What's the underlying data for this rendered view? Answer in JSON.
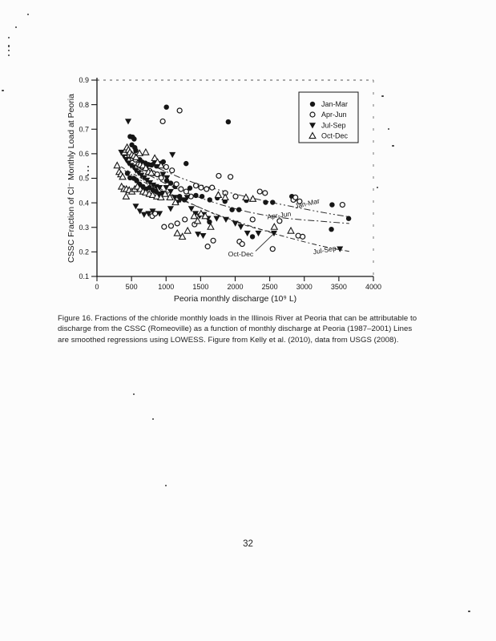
{
  "page": {
    "number": "32"
  },
  "caption": {
    "line1": "Figure 16. Fractions of the chloride monthly loads in the Illinois River at Peoria that can be attributable to",
    "line2": "discharge from the CSSC (Romeoville) as a function of monthly discharge at Peoria (1987–2001) Lines",
    "line3": "are smoothed regressions using LOWESS. Figure from Kelly et al. (2010), data from USGS (2008)."
  },
  "chart_data": {
    "type": "scatter",
    "title": "",
    "xlabel": "Peoria monthly discharge (10⁹ L)",
    "ylabel": "CSSC Fraction of Cl⁻ Monthly Load at Peoria",
    "xlim": [
      0,
      4000
    ],
    "ylim": [
      0.1,
      0.9
    ],
    "xticks": [
      0,
      500,
      1000,
      1500,
      2000,
      2500,
      3000,
      3500,
      4000
    ],
    "yticks": [
      0.1,
      0.2,
      0.3,
      0.4,
      0.5,
      0.6,
      0.7,
      0.8,
      0.9
    ],
    "grid": false,
    "legend": {
      "position": "top-right"
    },
    "ink_color": "#161616",
    "series": [
      {
        "name": "Jan-Mar",
        "marker": "filled-circle",
        "points": [
          [
            480,
            0.67
          ],
          [
            515,
            0.668
          ],
          [
            538,
            0.66
          ],
          [
            505,
            0.636
          ],
          [
            548,
            0.625
          ],
          [
            562,
            0.613
          ],
          [
            620,
            0.576
          ],
          [
            655,
            0.566
          ],
          [
            700,
            0.562
          ],
          [
            745,
            0.556
          ],
          [
            790,
            0.554
          ],
          [
            832,
            0.562
          ],
          [
            862,
            0.55
          ],
          [
            905,
            0.552
          ],
          [
            932,
            0.562
          ],
          [
            960,
            0.567
          ],
          [
            1005,
            0.79
          ],
          [
            1900,
            0.73
          ],
          [
            1290,
            0.56
          ],
          [
            440,
            0.52
          ],
          [
            478,
            0.502
          ],
          [
            532,
            0.5
          ],
          [
            575,
            0.49
          ],
          [
            618,
            0.476
          ],
          [
            665,
            0.466
          ],
          [
            712,
            0.456
          ],
          [
            758,
            0.462
          ],
          [
            808,
            0.452
          ],
          [
            855,
            0.446
          ],
          [
            900,
            0.436
          ],
          [
            948,
            0.44
          ],
          [
            1010,
            0.49
          ],
          [
            1068,
            0.48
          ],
          [
            1130,
            0.466
          ],
          [
            1196,
            0.426
          ],
          [
            1265,
            0.412
          ],
          [
            1345,
            0.46
          ],
          [
            1432,
            0.43
          ],
          [
            1520,
            0.426
          ],
          [
            1632,
            0.412
          ],
          [
            1628,
            0.322
          ],
          [
            1742,
            0.42
          ],
          [
            1852,
            0.406
          ],
          [
            1955,
            0.372
          ],
          [
            2055,
            0.372
          ],
          [
            2162,
            0.41
          ],
          [
            2250,
            0.262
          ],
          [
            2440,
            0.402
          ],
          [
            2542,
            0.402
          ],
          [
            2820,
            0.426
          ],
          [
            2862,
            0.416
          ],
          [
            3392,
            0.292
          ],
          [
            3402,
            0.392
          ],
          [
            3642,
            0.336
          ]
        ]
      },
      {
        "name": "Apr-Jun",
        "marker": "open-circle",
        "points": [
          [
            952,
            0.732
          ],
          [
            1196,
            0.776
          ],
          [
            430,
            0.602
          ],
          [
            470,
            0.592
          ],
          [
            512,
            0.582
          ],
          [
            556,
            0.576
          ],
          [
            602,
            0.556
          ],
          [
            650,
            0.546
          ],
          [
            706,
            0.54
          ],
          [
            762,
            0.53
          ],
          [
            816,
            0.52
          ],
          [
            872,
            0.516
          ],
          [
            930,
            0.502
          ],
          [
            1002,
            0.546
          ],
          [
            1086,
            0.532
          ],
          [
            1150,
            0.476
          ],
          [
            1216,
            0.456
          ],
          [
            1292,
            0.446
          ],
          [
            1360,
            0.426
          ],
          [
            1432,
            0.47
          ],
          [
            1506,
            0.462
          ],
          [
            1586,
            0.456
          ],
          [
            1666,
            0.462
          ],
          [
            1762,
            0.51
          ],
          [
            1932,
            0.506
          ],
          [
            1856,
            0.44
          ],
          [
            2006,
            0.426
          ],
          [
            2356,
            0.446
          ],
          [
            2432,
            0.44
          ],
          [
            2642,
            0.326
          ],
          [
            2842,
            0.412
          ],
          [
            2872,
            0.422
          ],
          [
            2932,
            0.406
          ],
          [
            2912,
            0.266
          ],
          [
            2976,
            0.262
          ],
          [
            3552,
            0.392
          ],
          [
            800,
            0.346
          ],
          [
            842,
            0.356
          ],
          [
            972,
            0.302
          ],
          [
            1072,
            0.306
          ],
          [
            1162,
            0.316
          ],
          [
            1272,
            0.332
          ],
          [
            1412,
            0.312
          ],
          [
            1602,
            0.222
          ],
          [
            1682,
            0.246
          ],
          [
            2062,
            0.242
          ],
          [
            2102,
            0.232
          ],
          [
            2252,
            0.332
          ],
          [
            2542,
            0.212
          ]
        ]
      },
      {
        "name": "Jul-Sep",
        "marker": "filled-triangle-down",
        "points": [
          [
            452,
            0.732
          ],
          [
            352,
            0.606
          ],
          [
            386,
            0.592
          ],
          [
            422,
            0.576
          ],
          [
            456,
            0.562
          ],
          [
            492,
            0.552
          ],
          [
            526,
            0.546
          ],
          [
            562,
            0.532
          ],
          [
            602,
            0.522
          ],
          [
            642,
            0.512
          ],
          [
            682,
            0.502
          ],
          [
            722,
            0.492
          ],
          [
            766,
            0.482
          ],
          [
            812,
            0.472
          ],
          [
            856,
            0.466
          ],
          [
            906,
            0.462
          ],
          [
            956,
            0.516
          ],
          [
            1012,
            0.502
          ],
          [
            1092,
            0.596
          ],
          [
            1002,
            0.462
          ],
          [
            1066,
            0.446
          ],
          [
            1126,
            0.422
          ],
          [
            1206,
            0.412
          ],
          [
            562,
            0.386
          ],
          [
            622,
            0.366
          ],
          [
            682,
            0.352
          ],
          [
            746,
            0.356
          ],
          [
            806,
            0.366
          ],
          [
            906,
            0.356
          ],
          [
            1066,
            0.376
          ],
          [
            1166,
            0.402
          ],
          [
            1306,
            0.422
          ],
          [
            1366,
            0.376
          ],
          [
            1426,
            0.356
          ],
          [
            1486,
            0.346
          ],
          [
            1546,
            0.352
          ],
          [
            1606,
            0.336
          ],
          [
            1732,
            0.336
          ],
          [
            1462,
            0.272
          ],
          [
            1536,
            0.266
          ],
          [
            1866,
            0.332
          ],
          [
            2002,
            0.316
          ],
          [
            2082,
            0.302
          ],
          [
            2176,
            0.276
          ],
          [
            2336,
            0.276
          ],
          [
            2562,
            0.276
          ],
          [
            3516,
            0.212
          ]
        ]
      },
      {
        "name": "Oct-Dec",
        "marker": "open-triangle-up",
        "points": [
          [
            292,
            0.552
          ],
          [
            322,
            0.526
          ],
          [
            346,
            0.516
          ],
          [
            372,
            0.506
          ],
          [
            396,
            0.606
          ],
          [
            416,
            0.616
          ],
          [
            436,
            0.626
          ],
          [
            456,
            0.616
          ],
          [
            476,
            0.606
          ],
          [
            506,
            0.596
          ],
          [
            536,
            0.592
          ],
          [
            566,
            0.586
          ],
          [
            616,
            0.602
          ],
          [
            706,
            0.606
          ],
          [
            836,
            0.582
          ],
          [
            876,
            0.566
          ],
          [
            626,
            0.556
          ],
          [
            666,
            0.552
          ],
          [
            706,
            0.542
          ],
          [
            746,
            0.526
          ],
          [
            786,
            0.522
          ],
          [
            926,
            0.552
          ],
          [
            356,
            0.466
          ],
          [
            392,
            0.456
          ],
          [
            426,
            0.456
          ],
          [
            466,
            0.452
          ],
          [
            506,
            0.446
          ],
          [
            546,
            0.456
          ],
          [
            586,
            0.466
          ],
          [
            626,
            0.456
          ],
          [
            666,
            0.446
          ],
          [
            706,
            0.442
          ],
          [
            756,
            0.436
          ],
          [
            806,
            0.432
          ],
          [
            866,
            0.426
          ],
          [
            926,
            0.422
          ],
          [
            986,
            0.436
          ],
          [
            1056,
            0.422
          ],
          [
            1136,
            0.402
          ],
          [
            422,
            0.426
          ],
          [
            1162,
            0.276
          ],
          [
            1236,
            0.262
          ],
          [
            1312,
            0.286
          ],
          [
            1406,
            0.346
          ],
          [
            1456,
            0.326
          ],
          [
            1506,
            0.356
          ],
          [
            1566,
            0.346
          ],
          [
            1646,
            0.302
          ],
          [
            1756,
            0.432
          ],
          [
            1856,
            0.422
          ],
          [
            2156,
            0.422
          ],
          [
            2256,
            0.416
          ],
          [
            2566,
            0.302
          ],
          [
            2806,
            0.286
          ]
        ]
      }
    ],
    "trend_lines": [
      {
        "label": "Jan-Mar",
        "dash": "8 3 2 3 2 3",
        "label_at": [
          3050,
          0.388
        ],
        "label_angle": -13,
        "points": [
          [
            450,
            0.598
          ],
          [
            600,
            0.576
          ],
          [
            800,
            0.551
          ],
          [
            1000,
            0.527
          ],
          [
            1200,
            0.503
          ],
          [
            1400,
            0.482
          ],
          [
            1600,
            0.465
          ],
          [
            1800,
            0.45
          ],
          [
            2000,
            0.436
          ],
          [
            2200,
            0.422
          ],
          [
            2400,
            0.41
          ],
          [
            2600,
            0.397
          ],
          [
            2800,
            0.386
          ],
          [
            3000,
            0.375
          ],
          [
            3200,
            0.364
          ],
          [
            3400,
            0.354
          ],
          [
            3650,
            0.343
          ]
        ]
      },
      {
        "label": "Apr-Jun",
        "dash": "8 3 2 3",
        "label_at": [
          2640,
          0.34
        ],
        "label_angle": -8,
        "points": [
          [
            430,
            0.566
          ],
          [
            600,
            0.536
          ],
          [
            800,
            0.506
          ],
          [
            1000,
            0.477
          ],
          [
            1200,
            0.452
          ],
          [
            1400,
            0.43
          ],
          [
            1600,
            0.41
          ],
          [
            1800,
            0.392
          ],
          [
            2000,
            0.376
          ],
          [
            2200,
            0.362
          ],
          [
            2400,
            0.351
          ],
          [
            2600,
            0.342
          ],
          [
            2800,
            0.335
          ],
          [
            3000,
            0.33
          ],
          [
            3200,
            0.326
          ],
          [
            3400,
            0.321
          ],
          [
            3650,
            0.316
          ]
        ]
      },
      {
        "label": "Jul-Sep",
        "dash": "6 3 2 3",
        "label_at": [
          3300,
          0.198
        ],
        "label_angle": -10,
        "points": [
          [
            400,
            0.532
          ],
          [
            600,
            0.497
          ],
          [
            800,
            0.466
          ],
          [
            1000,
            0.44
          ],
          [
            1200,
            0.415
          ],
          [
            1400,
            0.391
          ],
          [
            1600,
            0.367
          ],
          [
            1800,
            0.346
          ],
          [
            2000,
            0.326
          ],
          [
            2200,
            0.307
          ],
          [
            2400,
            0.289
          ],
          [
            2600,
            0.271
          ],
          [
            2800,
            0.256
          ],
          [
            3000,
            0.241
          ],
          [
            3200,
            0.227
          ],
          [
            3400,
            0.215
          ],
          [
            3650,
            0.202
          ]
        ]
      },
      {
        "label": "Oct-Dec",
        "dash": "5 4",
        "label_at": [
          2080,
          0.182
        ],
        "label_angle": 0,
        "points": [
          [
            350,
            0.547
          ],
          [
            500,
            0.522
          ],
          [
            650,
            0.499
          ],
          [
            800,
            0.476
          ],
          [
            950,
            0.453
          ],
          [
            1100,
            0.432
          ],
          [
            1250,
            0.412
          ],
          [
            1400,
            0.392
          ],
          [
            1550,
            0.373
          ],
          [
            1700,
            0.354
          ],
          [
            1850,
            0.338
          ],
          [
            2000,
            0.322
          ],
          [
            2150,
            0.308
          ],
          [
            2300,
            0.296
          ],
          [
            2450,
            0.286
          ],
          [
            2560,
            0.28
          ]
        ]
      }
    ],
    "annotation_leader": {
      "from": [
        2295,
        0.203
      ],
      "to": [
        2550,
        0.272
      ]
    }
  }
}
